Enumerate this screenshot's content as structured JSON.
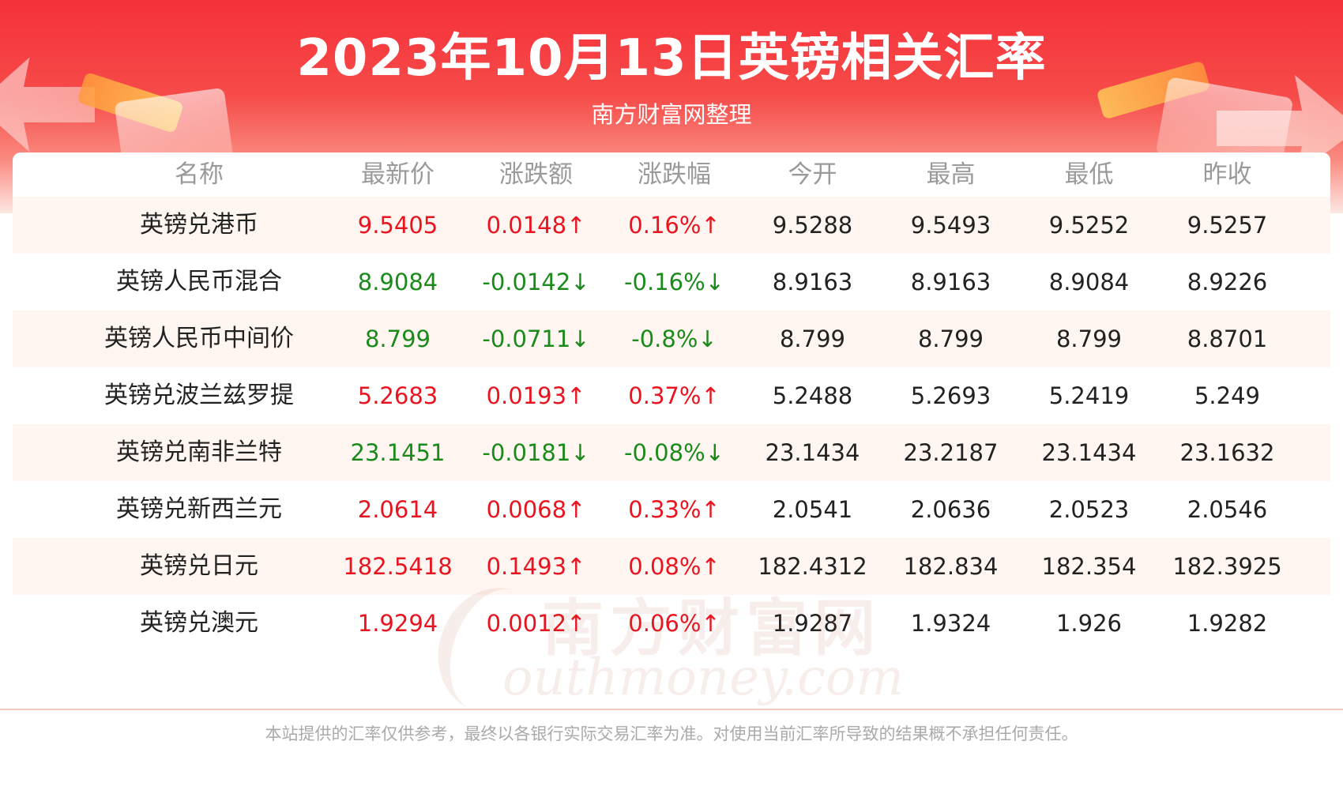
{
  "header": {
    "title": "2023年10月13日英镑相关汇率",
    "subtitle": "南方财富网整理"
  },
  "table": {
    "columns": [
      "名称",
      "最新价",
      "涨跌额",
      "涨跌幅",
      "今开",
      "最高",
      "最低",
      "昨收"
    ],
    "rows": [
      {
        "name": "英镑兑港币",
        "latest": "9.5405",
        "change": "0.0148↑",
        "change_pct": "0.16%↑",
        "open": "9.5288",
        "high": "9.5493",
        "low": "9.5252",
        "prev_close": "9.5257",
        "direction": "up"
      },
      {
        "name": "英镑人民币混合",
        "latest": "8.9084",
        "change": "-0.0142↓",
        "change_pct": "-0.16%↓",
        "open": "8.9163",
        "high": "8.9163",
        "low": "8.9084",
        "prev_close": "8.9226",
        "direction": "down"
      },
      {
        "name": "英镑人民币中间价",
        "latest": "8.799",
        "change": "-0.0711↓",
        "change_pct": "-0.8%↓",
        "open": "8.799",
        "high": "8.799",
        "low": "8.799",
        "prev_close": "8.8701",
        "direction": "down"
      },
      {
        "name": "英镑兑波兰兹罗提",
        "latest": "5.2683",
        "change": "0.0193↑",
        "change_pct": "0.37%↑",
        "open": "5.2488",
        "high": "5.2693",
        "low": "5.2419",
        "prev_close": "5.249",
        "direction": "up"
      },
      {
        "name": "英镑兑南非兰特",
        "latest": "23.1451",
        "change": "-0.0181↓",
        "change_pct": "-0.08%↓",
        "open": "23.1434",
        "high": "23.2187",
        "low": "23.1434",
        "prev_close": "23.1632",
        "direction": "down"
      },
      {
        "name": "英镑兑新西兰元",
        "latest": "2.0614",
        "change": "0.0068↑",
        "change_pct": "0.33%↑",
        "open": "2.0541",
        "high": "2.0636",
        "low": "2.0523",
        "prev_close": "2.0546",
        "direction": "up"
      },
      {
        "name": "英镑兑日元",
        "latest": "182.5418",
        "change": "0.1493↑",
        "change_pct": "0.08%↑",
        "open": "182.4312",
        "high": "182.834",
        "low": "182.354",
        "prev_close": "182.3925",
        "direction": "up"
      },
      {
        "name": "英镑兑澳元",
        "latest": "1.9294",
        "change": "0.0012↑",
        "change_pct": "0.06%↑",
        "open": "1.9287",
        "high": "1.9324",
        "low": "1.926",
        "prev_close": "1.9282",
        "direction": "up"
      }
    ]
  },
  "watermark": {
    "cn": "南方财富网",
    "en": "southmoney.com"
  },
  "footer": {
    "disclaimer": "本站提供的汇率仅供参考，最终以各银行实际交易汇率为准。对使用当前汇率所导致的结果概不承担任何责任。"
  },
  "colors": {
    "banner_red": "#f5313a",
    "up": "#e8141f",
    "down": "#1b8a1b",
    "row_stripe": "#fff6f1",
    "header_text": "#9a9a9a"
  },
  "chart_data": {
    "type": "table",
    "title": "2023年10月13日英镑相关汇率",
    "columns": [
      "名称",
      "最新价",
      "涨跌额",
      "涨跌幅",
      "今开",
      "最高",
      "最低",
      "昨收"
    ],
    "rows": [
      [
        "英镑兑港币",
        9.5405,
        0.0148,
        "0.16%",
        9.5288,
        9.5493,
        9.5252,
        9.5257
      ],
      [
        "英镑人民币混合",
        8.9084,
        -0.0142,
        "-0.16%",
        8.9163,
        8.9163,
        8.9084,
        8.9226
      ],
      [
        "英镑人民币中间价",
        8.799,
        -0.0711,
        "-0.8%",
        8.799,
        8.799,
        8.799,
        8.8701
      ],
      [
        "英镑兑波兰兹罗提",
        5.2683,
        0.0193,
        "0.37%",
        5.2488,
        5.2693,
        5.2419,
        5.249
      ],
      [
        "英镑兑南非兰特",
        23.1451,
        -0.0181,
        "-0.08%",
        23.1434,
        23.2187,
        23.1434,
        23.1632
      ],
      [
        "英镑兑新西兰元",
        2.0614,
        0.0068,
        "0.33%",
        2.0541,
        2.0636,
        2.0523,
        2.0546
      ],
      [
        "英镑兑日元",
        182.5418,
        0.1493,
        "0.08%",
        182.4312,
        182.834,
        182.354,
        182.3925
      ],
      [
        "英镑兑澳元",
        1.9294,
        0.0012,
        "0.06%",
        1.9287,
        1.9324,
        1.926,
        1.9282
      ]
    ]
  }
}
